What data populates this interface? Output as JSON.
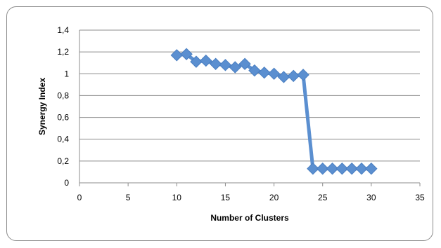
{
  "chart_data": {
    "type": "line",
    "title": "",
    "xlabel": "Number of Clusters",
    "ylabel": "Synergy Index",
    "xlim": [
      0,
      35
    ],
    "ylim": [
      0,
      1.4
    ],
    "x_ticks": [
      "0",
      "5",
      "10",
      "15",
      "20",
      "25",
      "30",
      "35"
    ],
    "y_ticks": [
      "0",
      "0,2",
      "0,4",
      "0,6",
      "0,8",
      "1",
      "1,2",
      "1,4"
    ],
    "grid": "horizontal",
    "legend": "none",
    "series": [
      {
        "color": "#5b8fd0",
        "marker": "diamond",
        "x": [
          10,
          11,
          12,
          13,
          14,
          15,
          16,
          17,
          18,
          19,
          20,
          21,
          22,
          23,
          24,
          25,
          26,
          27,
          28,
          29,
          30
        ],
        "y": [
          1.17,
          1.18,
          1.11,
          1.12,
          1.09,
          1.08,
          1.06,
          1.09,
          1.03,
          1.01,
          1.0,
          0.97,
          0.98,
          0.99,
          0.13,
          0.13,
          0.13,
          0.13,
          0.13,
          0.13,
          0.13
        ]
      }
    ]
  }
}
